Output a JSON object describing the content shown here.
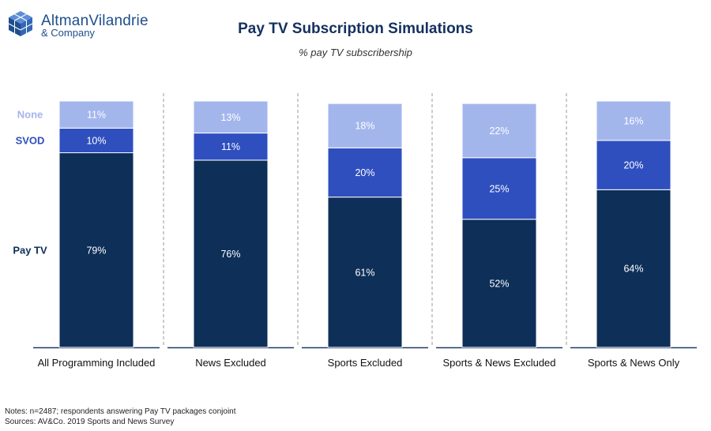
{
  "brand": {
    "name": "AltmanVilandrie",
    "tagline": "& Company",
    "color": "#1e4e8c"
  },
  "colors": {
    "pay_tv": "#0d2f58",
    "svod": "#2f4fbf",
    "none": "#a3b6ec",
    "axis": "#1f3a68"
  },
  "chart_data": {
    "type": "bar",
    "stacked": true,
    "title": "Pay TV Subscription Simulations",
    "subtitle": "% pay TV subscribership",
    "categories": [
      "All Programming Included",
      "News Excluded",
      "Sports Excluded",
      "Sports & News Excluded",
      "Sports & News Only"
    ],
    "series": [
      {
        "name": "Pay TV",
        "values": [
          79,
          76,
          61,
          52,
          64
        ],
        "labels": [
          "79%",
          "76%",
          "61%",
          "52%",
          "64%"
        ]
      },
      {
        "name": "SVOD",
        "values": [
          10,
          11,
          20,
          25,
          20
        ],
        "labels": [
          "10%",
          "11%",
          "20%",
          "25%",
          "20%"
        ]
      },
      {
        "name": "None",
        "values": [
          11,
          13,
          18,
          22,
          16
        ],
        "labels": [
          "11%",
          "13%",
          "18%",
          "22%",
          "16%"
        ]
      }
    ],
    "ylim": [
      0,
      100
    ],
    "legend": "left",
    "grid": false
  },
  "notes": {
    "line1": "Notes: n=2487; respondents answering Pay TV packages conjoint",
    "line2": "Sources: AV&Co. 2019 Sports and News Survey"
  }
}
